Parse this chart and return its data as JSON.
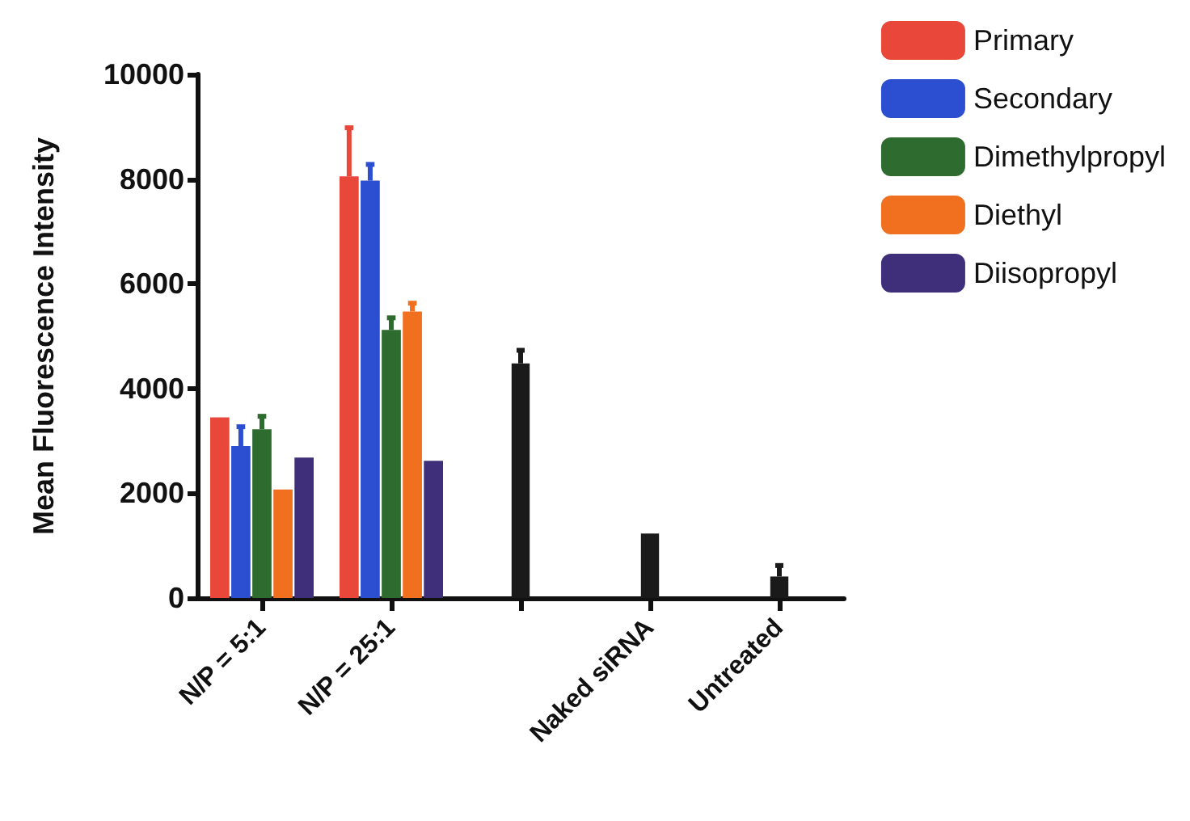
{
  "chart_data": {
    "type": "bar",
    "ylabel": "Mean Fluorescence Intensity",
    "categories": [
      "N/P = 5:1",
      "N/P = 25:1",
      null,
      "Naked siRNA",
      "Untreated"
    ],
    "series": [
      {
        "name": "Primary",
        "color": "#e8473a",
        "values": [
          3450,
          8050,
          null,
          null,
          null
        ],
        "errors": [
          null,
          [
            8050,
            8980
          ],
          null,
          null,
          null
        ]
      },
      {
        "name": "Secondary",
        "color": "#2b4fd0",
        "values": [
          2900,
          7970,
          null,
          null,
          null
        ],
        "errors": [
          [
            2900,
            3270
          ],
          [
            7970,
            8280
          ],
          null,
          null,
          null
        ]
      },
      {
        "name": "Dimethylpropyl",
        "color": "#2e6b2e",
        "values": [
          3220,
          5120,
          null,
          null,
          null
        ],
        "errors": [
          [
            3220,
            3470
          ],
          [
            5120,
            5350
          ],
          null,
          null,
          null
        ]
      },
      {
        "name": "Diethyl",
        "color": "#f07020",
        "values": [
          2070,
          5470,
          null,
          null,
          null
        ],
        "errors": [
          null,
          [
            5470,
            5630
          ],
          null,
          null,
          null
        ]
      },
      {
        "name": "Diisopropyl",
        "color": "#3f2f7a",
        "values": [
          2680,
          2620,
          null,
          null,
          null
        ],
        "errors": [
          null,
          null,
          null,
          null,
          null
        ]
      },
      {
        "color": "#1a1a1a",
        "values": [
          null,
          null,
          4480,
          1230,
          410
        ],
        "errors": [
          null,
          null,
          [
            4480,
            4730
          ],
          null,
          [
            410,
            620
          ]
        ]
      }
    ],
    "ylim": [
      0,
      10000
    ],
    "yticks": [
      0,
      2000,
      4000,
      6000,
      8000,
      10000
    ],
    "grid": false,
    "legend": "top right"
  }
}
